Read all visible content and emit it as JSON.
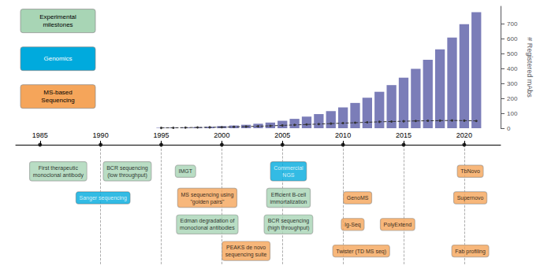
{
  "chart_data": {
    "type": "bar",
    "x": [
      1995,
      1996,
      1997,
      1998,
      1999,
      2000,
      2001,
      2002,
      2003,
      2004,
      2005,
      2006,
      2007,
      2008,
      2009,
      2010,
      2011,
      2012,
      2013,
      2014,
      2015,
      2016,
      2017,
      2018,
      2019,
      2020,
      2021
    ],
    "series": [
      {
        "type": "bar",
        "color": "#7b7db8",
        "values": [
          3,
          4,
          5,
          7,
          10,
          14,
          18,
          23,
          30,
          38,
          50,
          63,
          78,
          95,
          115,
          140,
          170,
          205,
          245,
          290,
          340,
          400,
          460,
          530,
          610,
          700,
          780
        ]
      },
      {
        "type": "line",
        "color": "#333333",
        "marker": "circle",
        "line_style": "dashed",
        "values": [
          2,
          3,
          4,
          5,
          6,
          7,
          9,
          11,
          13,
          16,
          19,
          22,
          25,
          28,
          31,
          34,
          37,
          40,
          43,
          45,
          47,
          49,
          50,
          51,
          52,
          51,
          49
        ]
      }
    ],
    "ylabel": "# Registered mAbs",
    "ylim": [
      0,
      820
    ],
    "yticks": [
      0,
      100,
      200,
      300,
      400,
      500,
      600,
      700
    ],
    "xlim": [
      1983,
      2023
    ],
    "xticks": [
      1985,
      1990,
      1995,
      2000,
      2005,
      2010,
      2015,
      2020
    ],
    "grid": false,
    "legend": "upper left",
    "legend_entries": [
      {
        "name": "Experimental\nmilestones",
        "color": "#a8d5b5",
        "text_color": "#000000"
      },
      {
        "name": "Genomics",
        "color": "#00aadd",
        "text_color": "#ffffff"
      },
      {
        "name": "MS-based\nSequencing",
        "color": "#f5a55a",
        "text_color": "#000000"
      }
    ],
    "vlines": [
      1990,
      1995,
      2000,
      2005,
      2010,
      2015,
      2020
    ],
    "annotations": [
      {
        "text": "First therapeutic\nmonoclonal antibody",
        "x": 1986.5,
        "row": 1,
        "color": "#a8d5b5",
        "text_color": "#000000"
      },
      {
        "text": "BCR sequencing\n(low throughput)",
        "x": 1992.2,
        "row": 1,
        "color": "#a8d5b5",
        "text_color": "#000000"
      },
      {
        "text": "IMGT",
        "x": 1997.0,
        "row": 1,
        "color": "#a8d5b5",
        "text_color": "#000000"
      },
      {
        "text": "Commercial\nNGS",
        "x": 2005.5,
        "row": 1,
        "color": "#00aadd",
        "text_color": "#ffffff"
      },
      {
        "text": "TbNovo",
        "x": 2020.5,
        "row": 1,
        "color": "#f5a55a",
        "text_color": "#000000"
      },
      {
        "text": "Sanger sequencing",
        "x": 1990.2,
        "row": 2,
        "color": "#00aadd",
        "text_color": "#ffffff"
      },
      {
        "text": "MS sequencing using\n\"golden pairs\"",
        "x": 1998.8,
        "row": 2,
        "color": "#f5a55a",
        "text_color": "#000000"
      },
      {
        "text": "Efficient B-cell\nimmortalization",
        "x": 2005.5,
        "row": 2,
        "color": "#a8d5b5",
        "text_color": "#000000"
      },
      {
        "text": "GenoMS",
        "x": 2011.2,
        "row": 2,
        "color": "#f5a55a",
        "text_color": "#000000"
      },
      {
        "text": "Supernovo",
        "x": 2020.5,
        "row": 2,
        "color": "#f5a55a",
        "text_color": "#000000"
      },
      {
        "text": "Edman degradation of\nmonoclonal antibodies",
        "x": 1998.8,
        "row": 3,
        "color": "#a8d5b5",
        "text_color": "#000000"
      },
      {
        "text": "BCR sequencing\n(high throughput)",
        "x": 2005.5,
        "row": 3,
        "color": "#a8d5b5",
        "text_color": "#000000"
      },
      {
        "text": "Ig-Seq",
        "x": 2010.8,
        "row": 3,
        "color": "#f5a55a",
        "text_color": "#000000"
      },
      {
        "text": "PolyExtend",
        "x": 2014.5,
        "row": 3,
        "color": "#f5a55a",
        "text_color": "#000000"
      },
      {
        "text": "PEAKS de novo\nsequencing suite",
        "x": 2002.0,
        "row": 4,
        "color": "#f5a55a",
        "text_color": "#000000"
      },
      {
        "text": "Twister (TD MS seq)",
        "x": 2011.5,
        "row": 4,
        "color": "#f5a55a",
        "text_color": "#000000"
      },
      {
        "text": "Fab profiling",
        "x": 2020.5,
        "row": 4,
        "color": "#f5a55a",
        "text_color": "#000000"
      }
    ]
  }
}
